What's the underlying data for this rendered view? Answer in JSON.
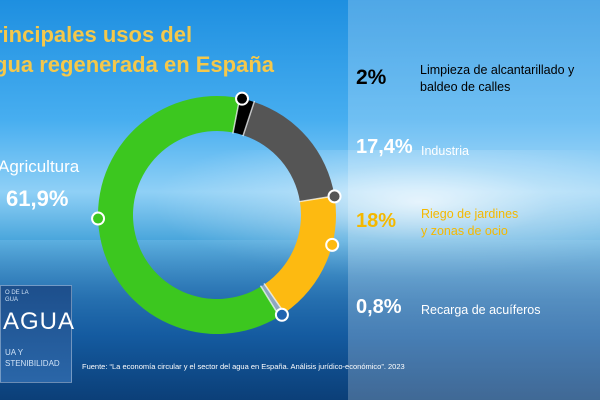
{
  "title": {
    "line1": "rincipales usos del",
    "line2": "gua regenerada en España"
  },
  "chart_data": {
    "type": "pie",
    "style": "donut",
    "title": "rincipales usos del gua regenerada en España",
    "unit": "%",
    "slices": [
      {
        "label": "Limpieza de alcantarillado y baldeo de calles",
        "value": 2,
        "value_label": "2%",
        "color": "#000000"
      },
      {
        "label": "Industria",
        "value": 17.4,
        "value_label": "17,4%",
        "color": "#555555"
      },
      {
        "label": "Riego de jardines y zonas de ocio",
        "value": 18,
        "value_label": "18%",
        "color": "#fdba11"
      },
      {
        "label": "Recarga de acuíferos",
        "value": 0.8,
        "value_label": "0,8%",
        "color": "#8fa7bf"
      },
      {
        "label": "Agricultura",
        "value": 61.9,
        "value_label": "61,9%",
        "color": "#3cc71f"
      }
    ]
  },
  "legend": {
    "limpieza": {
      "pct": "2%",
      "line1": "Limpieza de alcantarillado y",
      "line2": "baldeo de calles"
    },
    "industria": {
      "pct": "17,4%",
      "line1": "Industria"
    },
    "riego": {
      "pct": "18%",
      "line1": "Riego de jardines",
      "line2": "y zonas de ocio"
    },
    "recarga": {
      "pct": "0,8%",
      "line1": "Recarga de acuíferos"
    },
    "agricultura": {
      "pct": "61,9%",
      "line1": "Agricultura"
    }
  },
  "logo": {
    "line1": "O DE LA",
    "line2": "GUA",
    "word": "AGUA",
    "sub1": "UA Y",
    "sub2": "STENIBILIDAD"
  },
  "source": "Fuente: “La economía circular y el sector del agua en España. Análisis jurídico-económico”. 2023",
  "colors": {
    "title": "#f5c84a",
    "agri": "#3cc71f",
    "industria": "#555555",
    "riego": "#fdba11",
    "recarga": "#8fa7bf"
  }
}
